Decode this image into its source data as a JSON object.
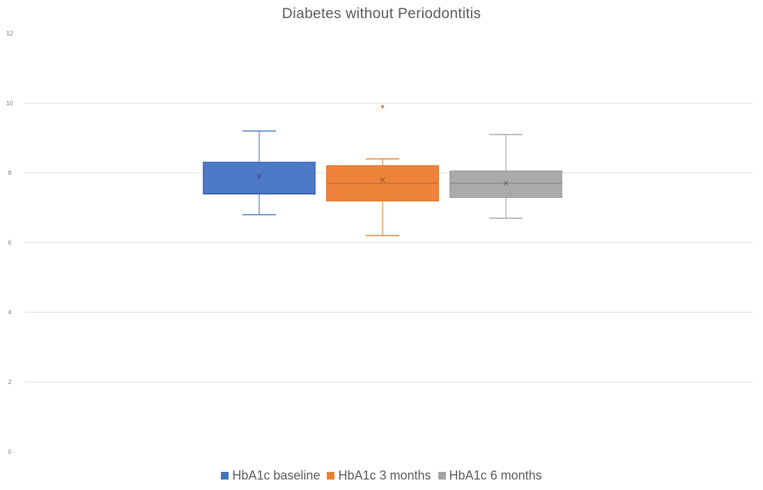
{
  "chart_data": {
    "type": "box",
    "title": "Diabetes without Periodontitis",
    "xlabel": "",
    "ylabel": "",
    "ylim": [
      0,
      12
    ],
    "yticks": [
      0,
      2,
      4,
      6,
      8,
      10,
      12
    ],
    "grid": true,
    "legend_position": "bottom",
    "series": [
      {
        "name": "HbA1c baseline",
        "color": "#4472C4",
        "min": 6.8,
        "q1": 7.4,
        "median": 7.4,
        "q3": 8.3,
        "max": 9.2,
        "mean": 7.9,
        "outliers": []
      },
      {
        "name": "HbA1c 3 months",
        "color": "#ED7D31",
        "min": 6.2,
        "q1": 7.2,
        "median": 7.7,
        "q3": 8.2,
        "max": 8.4,
        "mean": 7.8,
        "outliers": [
          9.9
        ]
      },
      {
        "name": "HbA1c 6 months",
        "color": "#A5A5A5",
        "min": 6.7,
        "q1": 7.3,
        "median": 7.7,
        "q3": 8.05,
        "max": 9.1,
        "mean": 7.7,
        "outliers": []
      }
    ]
  }
}
